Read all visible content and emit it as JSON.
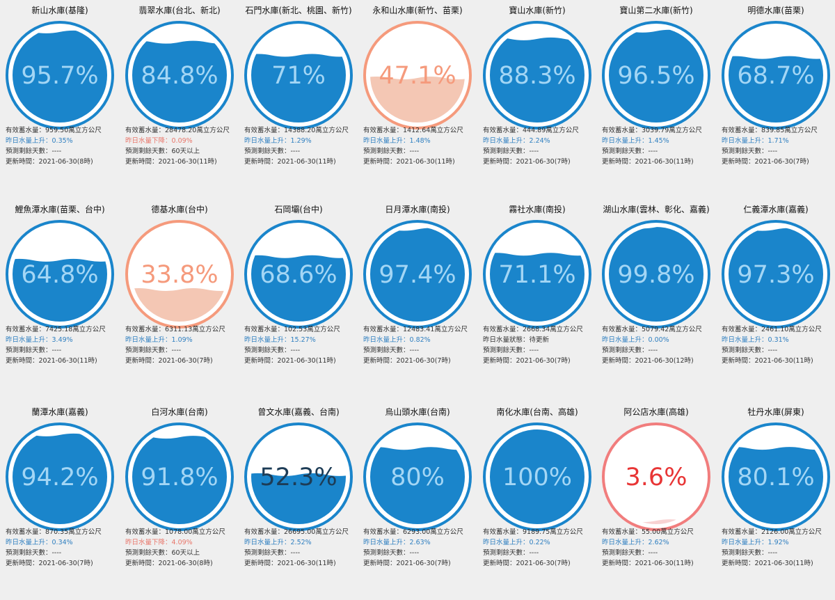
{
  "colors": {
    "blue": "#1a85cb",
    "blue_text": "#a3d6f5",
    "orange_ring": "#f59a7c",
    "orange_fill": "#f4c7b4",
    "orange_text": "#f59a7c",
    "red_ring": "#f17d7d",
    "red_fill": "#f8d2d2",
    "red_text": "#e83535",
    "dark_text": "#1d3c56",
    "up": "#2f7fc0",
    "down": "#e8766a"
  },
  "reservoirs": [
    {
      "name": "新山水庫(基隆)",
      "percent": "95.7%",
      "level": 0.957,
      "theme": "blue",
      "storage": "有效蓄水量：959.50萬立方公尺",
      "trend": "昨日水量上升：0.35%",
      "trend_dir": "up",
      "forecast": "預測剩餘天數：----",
      "updated": "更新時間：2021-06-30(8時)"
    },
    {
      "name": "翡翠水庫(台北、新北)",
      "percent": "84.8%",
      "level": 0.848,
      "theme": "blue",
      "storage": "有效蓄水量：28478.20萬立方公尺",
      "trend": "昨日水量下降：0.09%",
      "trend_dir": "down",
      "forecast": "預測剩餘天數：60天以上",
      "updated": "更新時間：2021-06-30(11時)"
    },
    {
      "name": "石門水庫(新北、桃園、新竹)",
      "percent": "71%",
      "level": 0.71,
      "theme": "blue",
      "storage": "有效蓄水量：14388.20萬立方公尺",
      "trend": "昨日水量上升：1.29%",
      "trend_dir": "up",
      "forecast": "預測剩餘天數：----",
      "updated": "更新時間：2021-06-30(11時)"
    },
    {
      "name": "永和山水庫(新竹、苗栗)",
      "percent": "47.1%",
      "level": 0.471,
      "theme": "orange",
      "storage": "有效蓄水量：1412.64萬立方公尺",
      "trend": "昨日水量上升：1.48%",
      "trend_dir": "up",
      "forecast": "預測剩餘天數：----",
      "updated": "更新時間：2021-06-30(11時)"
    },
    {
      "name": "寶山水庫(新竹)",
      "percent": "88.3%",
      "level": 0.883,
      "theme": "blue",
      "storage": "有效蓄水量：444.89萬立方公尺",
      "trend": "昨日水量上升：2.24%",
      "trend_dir": "up",
      "forecast": "預測剩餘天數：----",
      "updated": "更新時間：2021-06-30(7時)"
    },
    {
      "name": "寶山第二水庫(新竹)",
      "percent": "96.5%",
      "level": 0.965,
      "theme": "blue",
      "storage": "有效蓄水量：3039.79萬立方公尺",
      "trend": "昨日水量上升：1.45%",
      "trend_dir": "up",
      "forecast": "預測剩餘天數：----",
      "updated": "更新時間：2021-06-30(11時)"
    },
    {
      "name": "明德水庫(苗栗)",
      "percent": "68.7%",
      "level": 0.687,
      "theme": "blue",
      "storage": "有效蓄水量：839.85萬立方公尺",
      "trend": "昨日水量上升：1.71%",
      "trend_dir": "up",
      "forecast": "預測剩餘天數：----",
      "updated": "更新時間：2021-06-30(7時)"
    },
    {
      "name": "鯉魚潭水庫(苗栗、台中)",
      "percent": "64.8%",
      "level": 0.648,
      "theme": "blue",
      "storage": "有效蓄水量：7425.18萬立方公尺",
      "trend": "昨日水量上升：3.49%",
      "trend_dir": "up",
      "forecast": "預測剩餘天數：----",
      "updated": "更新時間：2021-06-30(11時)"
    },
    {
      "name": "德基水庫(台中)",
      "percent": "33.8%",
      "level": 0.338,
      "theme": "orange",
      "storage": "有效蓄水量：6311.13萬立方公尺",
      "trend": "昨日水量上升：1.09%",
      "trend_dir": "up",
      "forecast": "預測剩餘天數：----",
      "updated": "更新時間：2021-06-30(7時)"
    },
    {
      "name": "石岡壩(台中)",
      "percent": "68.6%",
      "level": 0.686,
      "theme": "blue",
      "storage": "有效蓄水量：102.53萬立方公尺",
      "trend": "昨日水量上升：15.27%",
      "trend_dir": "up",
      "forecast": "預測剩餘天數：----",
      "updated": "更新時間：2021-06-30(11時)"
    },
    {
      "name": "日月潭水庫(南投)",
      "percent": "97.4%",
      "level": 0.974,
      "theme": "blue",
      "storage": "有效蓄水量：12483.41萬立方公尺",
      "trend": "昨日水量上升：0.82%",
      "trend_dir": "up",
      "forecast": "預測剩餘天數：----",
      "updated": "更新時間：2021-06-30(7時)"
    },
    {
      "name": "霧社水庫(南投)",
      "percent": "71.1%",
      "level": 0.711,
      "theme": "blue",
      "storage": "有效蓄水量：2668.34萬立方公尺",
      "trend": "昨日水量狀態：待更新",
      "trend_dir": "neutral",
      "forecast": "預測剩餘天數：----",
      "updated": "更新時間：2021-06-30(7時)"
    },
    {
      "name": "湖山水庫(雲林、彰化、嘉義)",
      "percent": "99.8%",
      "level": 0.998,
      "theme": "blue",
      "storage": "有效蓄水量：5079.42萬立方公尺",
      "trend": "昨日水量上升：0.00%",
      "trend_dir": "up",
      "forecast": "預測剩餘天數：----",
      "updated": "更新時間：2021-06-30(12時)"
    },
    {
      "name": "仁義潭水庫(嘉義)",
      "percent": "97.3%",
      "level": 0.973,
      "theme": "blue",
      "storage": "有效蓄水量：2461.10萬立方公尺",
      "trend": "昨日水量上升：0.31%",
      "trend_dir": "up",
      "forecast": "預測剩餘天數：----",
      "updated": "更新時間：2021-06-30(11時)"
    },
    {
      "name": "蘭潭水庫(嘉義)",
      "percent": "94.2%",
      "level": 0.942,
      "theme": "blue",
      "storage": "有效蓄水量：870.35萬立方公尺",
      "trend": "昨日水量上升：0.34%",
      "trend_dir": "up",
      "forecast": "預測剩餘天數：----",
      "updated": "更新時間：2021-06-30(7時)"
    },
    {
      "name": "白河水庫(台南)",
      "percent": "91.8%",
      "level": 0.918,
      "theme": "blue",
      "storage": "有效蓄水量：1078.00萬立方公尺",
      "trend": "昨日水量下降：4.09%",
      "trend_dir": "down",
      "forecast": "預測剩餘天數：60天以上",
      "updated": "更新時間：2021-06-30(8時)"
    },
    {
      "name": "曾文水庫(嘉義、台南)",
      "percent": "52.3%",
      "level": 0.523,
      "theme": "blue-dark",
      "storage": "有效蓄水量：26695.00萬立方公尺",
      "trend": "昨日水量上升：2.52%",
      "trend_dir": "up",
      "forecast": "預測剩餘天數：----",
      "updated": "更新時間：2021-06-30(11時)"
    },
    {
      "name": "烏山頭水庫(台南)",
      "percent": "80%",
      "level": 0.8,
      "theme": "blue",
      "storage": "有效蓄水量：6293.00萬立方公尺",
      "trend": "昨日水量上升：2.63%",
      "trend_dir": "up",
      "forecast": "預測剩餘天數：----",
      "updated": "更新時間：2021-06-30(7時)"
    },
    {
      "name": "南化水庫(台南、高雄)",
      "percent": "100%",
      "level": 1.0,
      "theme": "blue",
      "storage": "有效蓄水量：9189.75萬立方公尺",
      "trend": "昨日水量上升：0.22%",
      "trend_dir": "up",
      "forecast": "預測剩餘天數：----",
      "updated": "更新時間：2021-06-30(7時)"
    },
    {
      "name": "阿公店水庫(高雄)",
      "percent": "3.6%",
      "level": 0.036,
      "theme": "red",
      "storage": "有效蓄水量：55.00萬立方公尺",
      "trend": "昨日水量上升：2.62%",
      "trend_dir": "up",
      "forecast": "預測剩餘天數：----",
      "updated": "更新時間：2021-06-30(11時)"
    },
    {
      "name": "牡丹水庫(屏東)",
      "percent": "80.1%",
      "level": 0.801,
      "theme": "blue",
      "storage": "有效蓄水量：2126.00萬立方公尺",
      "trend": "昨日水量上升：1.92%",
      "trend_dir": "up",
      "forecast": "預測剩餘天數：----",
      "updated": "更新時間：2021-06-30(11時)"
    }
  ]
}
